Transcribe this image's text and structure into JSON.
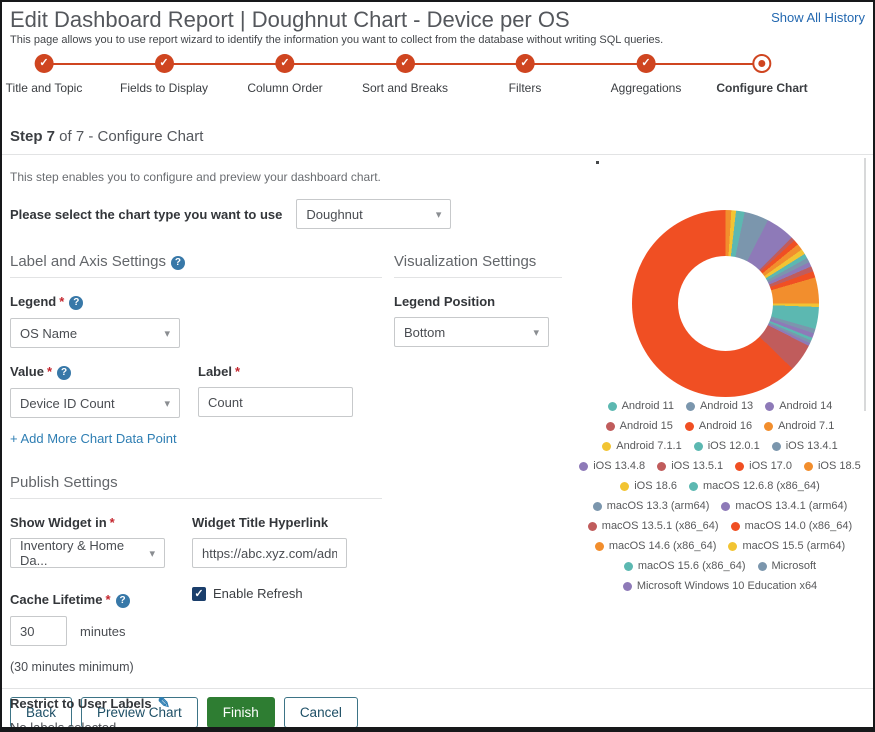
{
  "header": {
    "title": "Edit Dashboard Report | Doughnut Chart - Device per OS",
    "history_link": "Show All History",
    "subtitle": "This page allows you to use report wizard to identify the information you want to collect from the database without writing SQL queries."
  },
  "icons": {
    "check": "✓",
    "caret": "▾",
    "help": "?",
    "pencil": "✎",
    "required": "*"
  },
  "stepper": {
    "steps": [
      {
        "label": "Title and Topic",
        "state": "complete"
      },
      {
        "label": "Fields to Display",
        "state": "complete"
      },
      {
        "label": "Column Order",
        "state": "complete"
      },
      {
        "label": "Sort and Breaks",
        "state": "complete"
      },
      {
        "label": "Filters",
        "state": "complete"
      },
      {
        "label": "Aggregations",
        "state": "complete"
      },
      {
        "label": "Configure Chart",
        "state": "current"
      }
    ]
  },
  "step_heading": {
    "bold": "Step 7",
    "rest": " of 7 - Configure Chart"
  },
  "intro": "This step enables you to configure and preview your dashboard chart.",
  "chart_type": {
    "label": "Please select the chart type you want to use",
    "value": "Doughnut"
  },
  "label_axis": {
    "title": "Label and Axis Settings",
    "legend_label": "Legend",
    "legend_value": "OS Name",
    "value_label": "Value",
    "value_value": "Device ID Count",
    "label_label": "Label",
    "label_value": "Count",
    "add_link": "+ Add More Chart Data Point"
  },
  "visualization": {
    "title": "Visualization Settings",
    "legend_position_label": "Legend Position",
    "legend_position_value": "Bottom"
  },
  "publish": {
    "title": "Publish Settings",
    "show_widget_label": "Show Widget in",
    "show_widget_value": "Inventory & Home Da...",
    "hyperlink_label": "Widget Title Hyperlink",
    "hyperlink_value": "https://abc.xyz.com/admir",
    "enable_refresh_label": "Enable Refresh",
    "cache_label": "Cache Lifetime",
    "cache_value": "30",
    "cache_unit": "minutes",
    "cache_note": "(30 minutes minimum)",
    "restrict_label": "Restrict to User Labels",
    "restrict_value": "No labels selected."
  },
  "footer": {
    "back": "Back",
    "preview": "Preview Chart",
    "finish": "Finish",
    "cancel": "Cancel"
  },
  "colors": {
    "accent_red": "#cf4520",
    "link_blue": "#2368b0",
    "add_link_blue": "#2e7eb3",
    "help_blue": "#3878a8",
    "finish_green": "#2e7d32",
    "outline_button_border": "#3d7486",
    "outline_button_text": "#1d4f66",
    "checkbox_navy": "#1a3e6b",
    "asterisk_red": "#c4262e"
  },
  "chart_data": {
    "type": "pie",
    "subtype": "doughnut",
    "legend_position": "bottom",
    "direction": "clockwise",
    "start_angle": "top",
    "draw_start_index": 5,
    "unit": "percent-estimated",
    "palette": [
      "#5cb8b1",
      "#7b96ad",
      "#8e7ab8",
      "#c05c5c",
      "#f04f23",
      "#f28e2d",
      "#f2c433"
    ],
    "series": [
      {
        "name": "Android 11",
        "value_pct": 0.5
      },
      {
        "name": "Android 13",
        "value_pct": 0.5
      },
      {
        "name": "Android 14",
        "value_pct": 0.5
      },
      {
        "name": "Android 15",
        "value_pct": 4.8
      },
      {
        "name": "Android 16",
        "value_pct": 62.7
      },
      {
        "name": "Android 7.1",
        "value_pct": 1.0
      },
      {
        "name": "Android 7.1.1",
        "value_pct": 0.8
      },
      {
        "name": "iOS 12.0.1",
        "value_pct": 1.5
      },
      {
        "name": "iOS 13.4.1",
        "value_pct": 4.2
      },
      {
        "name": "iOS 13.4.8",
        "value_pct": 5.0
      },
      {
        "name": "iOS 13.5.1",
        "value_pct": 0.7
      },
      {
        "name": "iOS 17.0",
        "value_pct": 0.9
      },
      {
        "name": "iOS 18.5",
        "value_pct": 1.1
      },
      {
        "name": "iOS 18.6",
        "value_pct": 0.9
      },
      {
        "name": "macOS 12.6.8 (x86_64)",
        "value_pct": 0.8
      },
      {
        "name": "macOS 13.3 (arm64)",
        "value_pct": 0.8
      },
      {
        "name": "macOS 13.4.1 (arm64)",
        "value_pct": 0.8
      },
      {
        "name": "macOS 13.5.1 (x86_64)",
        "value_pct": 0.9
      },
      {
        "name": "macOS 14.0 (x86_64)",
        "value_pct": 1.1
      },
      {
        "name": "macOS 14.6 (x86_64)",
        "value_pct": 4.5
      },
      {
        "name": "macOS 15.5 (arm64)",
        "value_pct": 0.6
      },
      {
        "name": "macOS 15.6 (x86_64)",
        "value_pct": 3.8
      },
      {
        "name": "Microsoft",
        "value_pct": 0.8
      },
      {
        "name": "Microsoft Windows 10 Education x64",
        "value_pct": 0.8
      }
    ]
  }
}
